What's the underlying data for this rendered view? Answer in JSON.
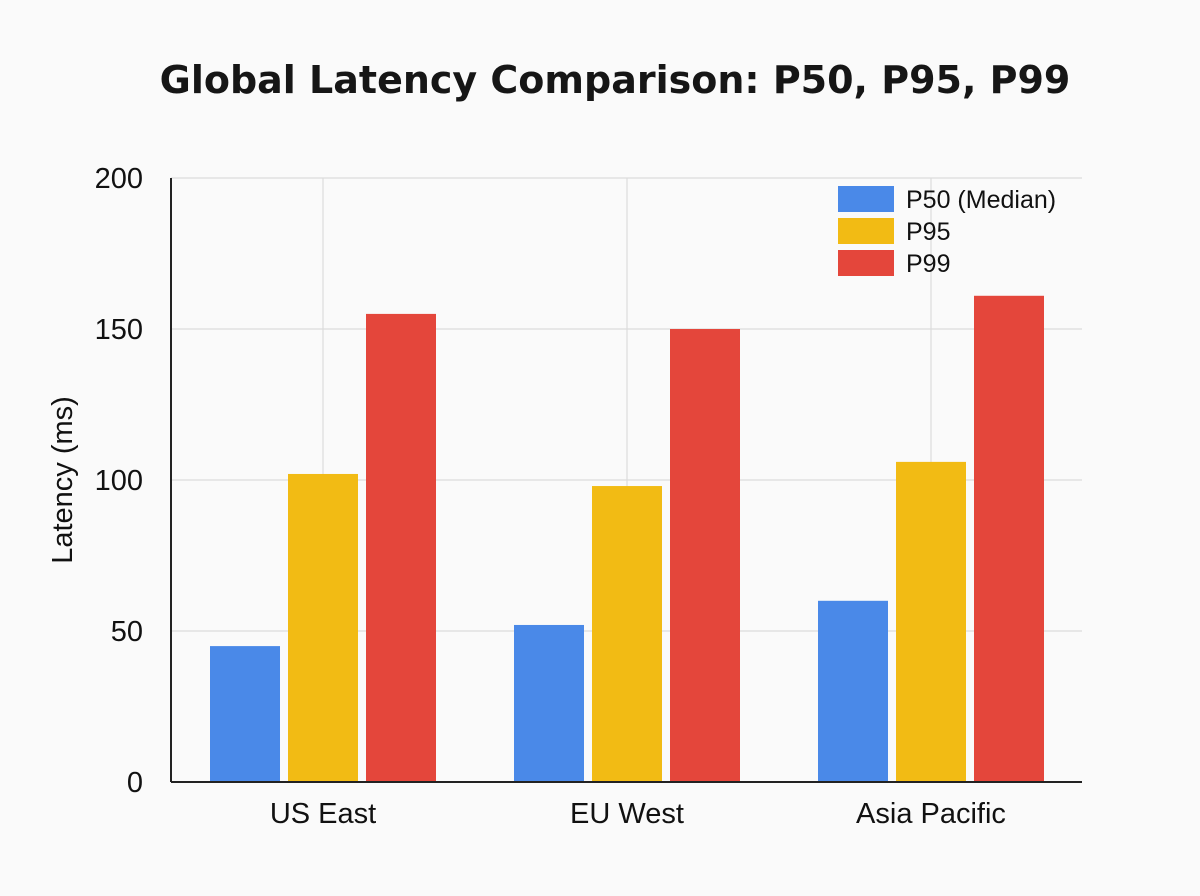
{
  "chart_data": {
    "type": "bar",
    "title": "Global Latency Comparison: P50, P95, P99",
    "xlabel": "",
    "ylabel": "Latency (ms)",
    "ylim": [
      0,
      200
    ],
    "yticks": [
      "0",
      "50",
      "100",
      "150",
      "200"
    ],
    "categories": [
      "US East",
      "EU West",
      "Asia Pacific"
    ],
    "series": [
      {
        "name": "P50 (Median)",
        "color": "#4a89e8",
        "values": [
          45,
          52,
          60
        ]
      },
      {
        "name": "P95",
        "color": "#f2bb14",
        "values": [
          102,
          98,
          106
        ]
      },
      {
        "name": "P99",
        "color": "#e4463b",
        "values": [
          155,
          150,
          161
        ]
      }
    ],
    "grid": true,
    "legend_position": "top-right"
  }
}
